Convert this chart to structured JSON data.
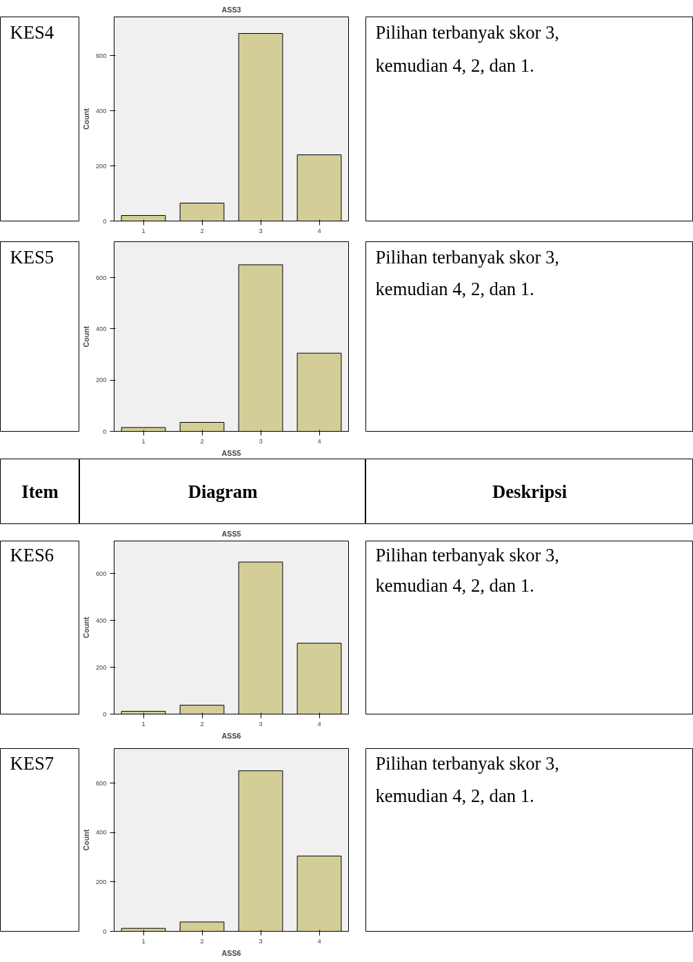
{
  "chart_data": [
    {
      "type": "other",
      "annotations": [
        "KES4"
      ]
    },
    {
      "type": "bar",
      "title": "ASS3",
      "ylabel": "Count",
      "categories": [
        "1",
        "2",
        "3",
        "4"
      ],
      "values": [
        20,
        65,
        680,
        240
      ],
      "color": "#d3ce97",
      "ylim": [
        0,
        740
      ],
      "yticks": [
        0,
        200,
        400,
        600
      ]
    },
    {
      "type": "other",
      "annotations": [
        "Pilihan terbanyak skor 3,",
        "kemudian 4, 2, dan 1."
      ]
    },
    {
      "type": "other",
      "annotations": [
        "KES5"
      ]
    },
    {
      "type": "bar",
      "xlabel": "ASS5",
      "ylabel": "Count",
      "categories": [
        "1",
        "2",
        "3",
        "4"
      ],
      "values": [
        15,
        35,
        650,
        305
      ],
      "color": "#d3ce97",
      "ylim": [
        0,
        740
      ],
      "yticks": [
        0,
        200,
        400,
        600
      ]
    },
    {
      "type": "other",
      "annotations": [
        "Pilihan terbanyak skor 3,",
        "kemudian 4, 2, dan 1."
      ]
    },
    {
      "type": "other",
      "title": "Item"
    },
    {
      "type": "other",
      "title": "Diagram"
    },
    {
      "type": "other",
      "title": "Deskripsi"
    },
    {
      "type": "other",
      "annotations": [
        "KES6"
      ]
    },
    {
      "type": "bar",
      "title": "ASS5",
      "xlabel": "ASS6",
      "ylabel": "Count",
      "categories": [
        "1",
        "2",
        "3",
        "4"
      ],
      "values": [
        12,
        38,
        650,
        303
      ],
      "color": "#d3ce97",
      "ylim": [
        0,
        740
      ],
      "yticks": [
        0,
        200,
        400,
        600
      ]
    },
    {
      "type": "other",
      "annotations": [
        "Pilihan terbanyak skor 3,",
        "kemudian 4, 2, dan 1."
      ]
    },
    {
      "type": "other",
      "annotations": [
        "KES7"
      ]
    },
    {
      "type": "bar",
      "xlabel": "ASS6",
      "ylabel": "Count",
      "categories": [
        "1",
        "2",
        "3",
        "4"
      ],
      "values": [
        12,
        38,
        650,
        305
      ],
      "color": "#d3ce97",
      "ylim": [
        0,
        740
      ],
      "yticks": [
        0,
        200,
        400,
        600
      ]
    },
    {
      "type": "other",
      "annotations": [
        "Pilihan terbanyak skor 3,",
        "kemudian 4, 2, dan 1."
      ]
    }
  ]
}
